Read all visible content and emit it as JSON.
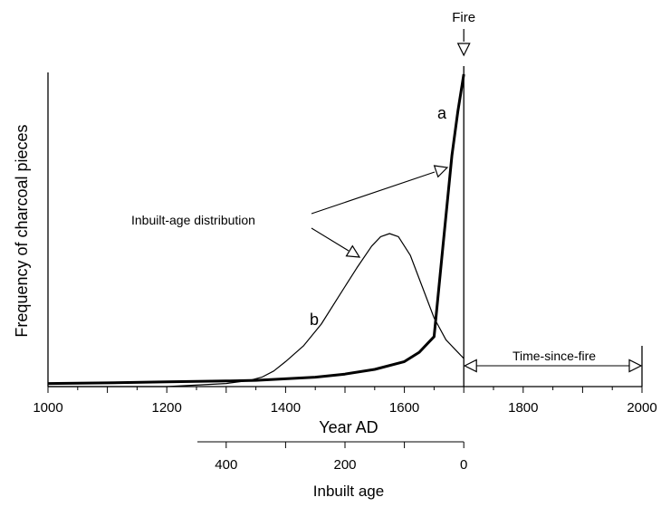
{
  "chart_data": {
    "type": "line",
    "ylabel": "Frequency of charcoal pieces",
    "xlabel": "Year AD",
    "secondary_xlabel": "Inbuilt age",
    "xlim": [
      1000,
      2000
    ],
    "x_ticks": [
      1000,
      1200,
      1400,
      1600,
      1800,
      2000
    ],
    "secondary_ticks": [
      400,
      200,
      0
    ],
    "grid": false,
    "series": [
      {
        "name": "a",
        "x": [
          1000,
          1100,
          1200,
          1300,
          1350,
          1400,
          1450,
          1500,
          1550,
          1600,
          1625,
          1650,
          1665,
          1680,
          1690,
          1700
        ],
        "y": [
          0.01,
          0.012,
          0.015,
          0.018,
          0.02,
          0.025,
          0.03,
          0.04,
          0.055,
          0.08,
          0.11,
          0.16,
          0.45,
          0.74,
          0.88,
          1.0
        ]
      },
      {
        "name": "b",
        "x": [
          1000,
          1200,
          1300,
          1340,
          1360,
          1380,
          1400,
          1430,
          1460,
          1490,
          1520,
          1545,
          1560,
          1575,
          1590,
          1610,
          1630,
          1650,
          1670,
          1690,
          1700
        ],
        "y": [
          0.0,
          0.0,
          0.01,
          0.02,
          0.03,
          0.05,
          0.08,
          0.13,
          0.2,
          0.29,
          0.38,
          0.45,
          0.48,
          0.49,
          0.48,
          0.42,
          0.32,
          0.22,
          0.15,
          0.11,
          0.09
        ]
      }
    ],
    "annotations": {
      "fire": "Fire",
      "fire_year": 1700,
      "distribution": "Inbuilt-age distribution",
      "label_a": "a",
      "label_b": "b",
      "time_since_fire": "Time-since-fire",
      "time_since_fire_range": [
        1700,
        2000
      ]
    }
  }
}
